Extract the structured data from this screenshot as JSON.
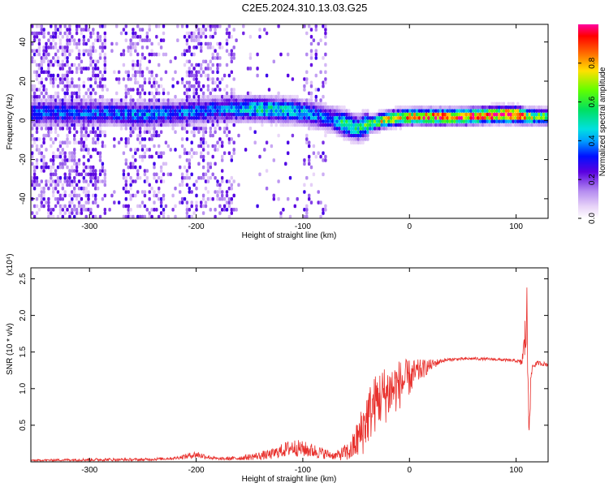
{
  "title": "C2E5.2024.310.13.03.G25",
  "chart_data": [
    {
      "type": "heatmap",
      "xlabel": "Height of straight line (km)",
      "ylabel": "Frequency (Hz)",
      "xlim": [
        -355,
        130
      ],
      "ylim": [
        -50,
        49
      ],
      "x_ticks": [
        -300,
        -200,
        -100,
        0,
        100
      ],
      "y_ticks": [
        -40,
        -20,
        0,
        20,
        40
      ],
      "colorbar": {
        "label": "Normalized spectral amplitude",
        "range": [
          0,
          1
        ],
        "ticks": [
          0.0,
          0.2,
          0.4,
          0.6,
          0.8
        ]
      },
      "ridge": {
        "description_points_x": [
          -285,
          -250,
          -220,
          -170,
          -140,
          -110,
          -90,
          -75,
          -60,
          -50,
          -40,
          -20,
          0,
          20,
          50,
          80,
          100,
          110,
          130
        ],
        "center_freq": [
          3,
          2,
          3,
          5,
          5,
          4,
          2,
          0,
          -3,
          -5,
          -3,
          0,
          1,
          1,
          1,
          2,
          2,
          1,
          1
        ],
        "peak_amplitude": [
          0.35,
          0.4,
          0.35,
          0.4,
          0.5,
          0.45,
          0.4,
          0.35,
          0.6,
          0.5,
          0.6,
          0.75,
          0.8,
          0.85,
          0.9,
          0.95,
          1.0,
          0.7,
          0.6
        ]
      }
    },
    {
      "type": "line",
      "xlabel": "Height of straight line (km)",
      "ylabel": "SNR (10 * v/v)",
      "y_multiplier": "(x10⁴)",
      "xlim": [
        -355,
        130
      ],
      "ylim": [
        0,
        2.65
      ],
      "x_ticks": [
        -300,
        -200,
        -100,
        0,
        100
      ],
      "y_ticks": [
        0.5,
        1.0,
        1.5,
        2.0,
        2.5
      ],
      "color": "#e8302c",
      "envelope": {
        "x": [
          -355,
          -300,
          -250,
          -220,
          -200,
          -180,
          -160,
          -130,
          -110,
          -90,
          -70,
          -55,
          -45,
          -40,
          -30,
          -20,
          -10,
          0,
          10,
          20,
          30,
          40,
          60,
          80,
          100,
          105,
          108,
          110,
          112,
          115,
          120,
          130
        ],
        "y": [
          0.02,
          0.03,
          0.03,
          0.05,
          0.1,
          0.04,
          0.05,
          0.1,
          0.2,
          0.15,
          0.08,
          0.15,
          0.4,
          0.6,
          0.85,
          0.95,
          1.05,
          1.15,
          1.25,
          1.32,
          1.38,
          1.4,
          1.41,
          1.4,
          1.38,
          1.35,
          1.6,
          2.0,
          0.6,
          1.3,
          1.35,
          1.33
        ],
        "noise": [
          0.01,
          0.02,
          0.02,
          0.02,
          0.05,
          0.02,
          0.03,
          0.07,
          0.12,
          0.1,
          0.05,
          0.15,
          0.35,
          0.4,
          0.4,
          0.4,
          0.35,
          0.25,
          0.15,
          0.08,
          0.03,
          0.02,
          0.02,
          0.02,
          0.02,
          0.05,
          0.25,
          0.6,
          0.3,
          0.05,
          0.03,
          0.03
        ]
      }
    }
  ]
}
